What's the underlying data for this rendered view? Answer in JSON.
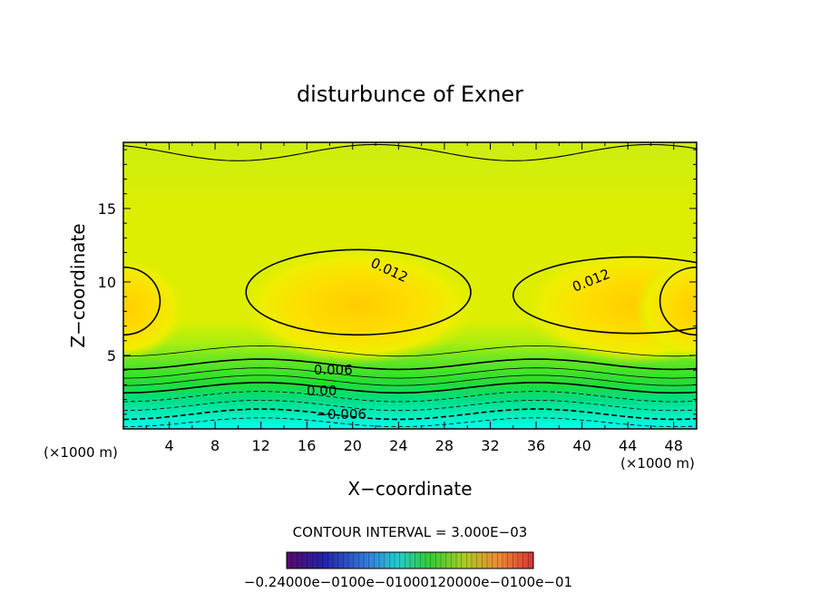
{
  "chart_data": {
    "type": "contour",
    "title": "disturbunce of Exner",
    "xlabel": "X−coordinate",
    "ylabel": "Z−coordinate",
    "x_unit_left": "(×1000 m)",
    "x_unit_right": "(×1000 m)",
    "xlim": [
      0,
      50
    ],
    "ylim": [
      0,
      19.5
    ],
    "xticks": [
      4,
      8,
      12,
      16,
      20,
      24,
      28,
      32,
      36,
      40,
      44,
      48
    ],
    "yticks": [
      5,
      10,
      15
    ],
    "contour_interval_text": "CONTOUR INTERVAL = 3.000E−03",
    "contour_interval": 0.003,
    "contour_labels": [
      {
        "text": "0.012",
        "x": 23.2,
        "y": 10.8
      },
      {
        "text": "0.012",
        "x": 40.8,
        "y": 10.1
      },
      {
        "text": "0.006",
        "x": 18.3,
        "y": 4.0
      },
      {
        "text": "0.00",
        "x": 17.3,
        "y": 2.6
      },
      {
        "text": "−0.006",
        "x": 19.0,
        "y": 1.0
      }
    ],
    "colorbar_labels_text": "−0.24000e−0100e−01000120000e−0100e−01",
    "colorbar_labels": [
      "−0.24000e−01",
      "−0.1200e−01",
      "0.000",
      "0.12000e−01",
      "0.2400e−01"
    ],
    "grid": false,
    "legend": "colorbar-bottom",
    "colors": {
      "cold": "#00ffee",
      "mid": "#22ee22",
      "warm": "#ccee00",
      "max": "#ffcc00"
    }
  }
}
